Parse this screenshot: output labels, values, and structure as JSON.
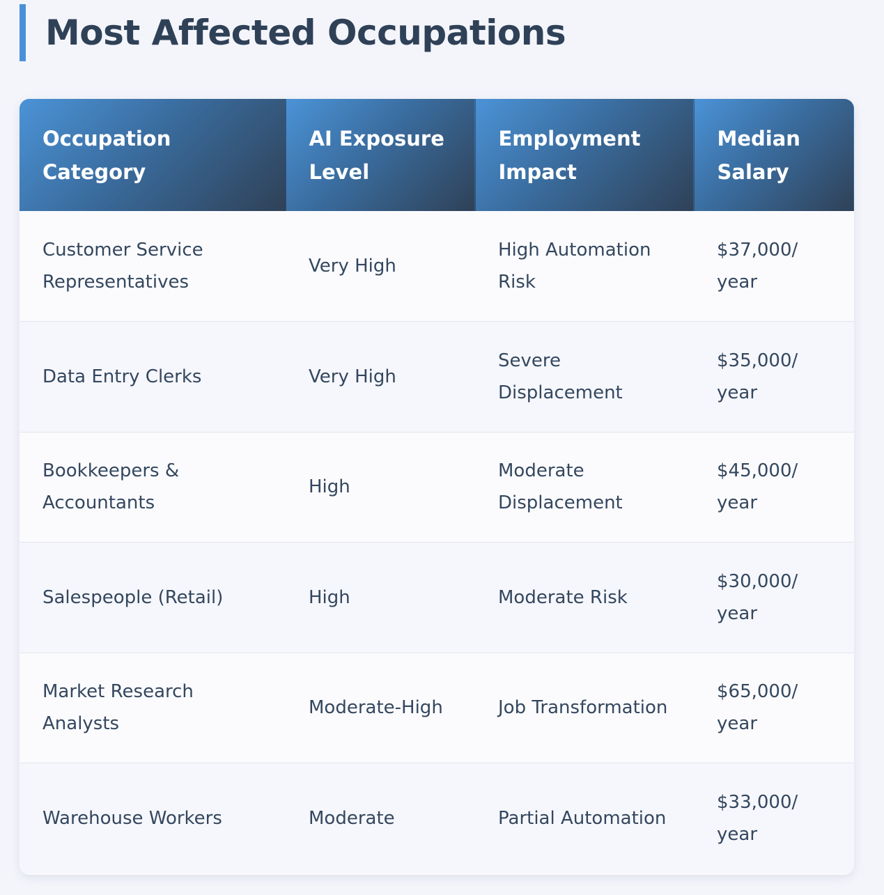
{
  "page": {
    "title": "Most Affected Occupations"
  },
  "colors": {
    "accent_bar": "#4a90d9",
    "header_gradient_start": "#4b93d7",
    "header_gradient_end": "#2f4157",
    "title_text": "#2f4157",
    "body_text": "#34475e"
  },
  "table": {
    "columns": [
      "Occupation Category",
      "AI Exposure Level",
      "Employment Impact",
      "Median Salary"
    ],
    "rows": [
      {
        "occupation": "Customer Service Representatives",
        "exposure": "Very High",
        "impact": "High Automation Risk",
        "salary": "$37,000/ year"
      },
      {
        "occupation": "Data Entry Clerks",
        "exposure": "Very High",
        "impact": "Severe Displacement",
        "salary": "$35,000/ year"
      },
      {
        "occupation": "Bookkeepers & Accountants",
        "exposure": "High",
        "impact": "Moderate Displacement",
        "salary": "$45,000/ year"
      },
      {
        "occupation": "Salespeople (Retail)",
        "exposure": "High",
        "impact": "Moderate Risk",
        "salary": "$30,000/ year"
      },
      {
        "occupation": "Market Research Analysts",
        "exposure": "Moderate-High",
        "impact": "Job Transformation",
        "salary": "$65,000/ year"
      },
      {
        "occupation": "Warehouse Workers",
        "exposure": "Moderate",
        "impact": "Partial Automation",
        "salary": "$33,000/ year"
      }
    ]
  }
}
